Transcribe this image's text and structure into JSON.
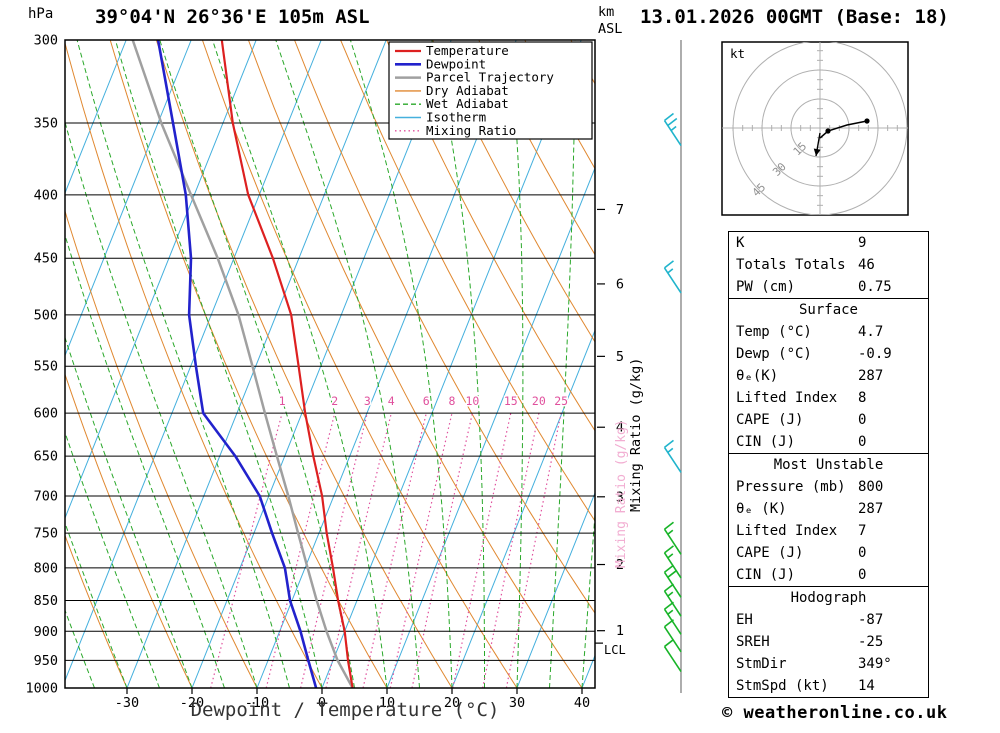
{
  "header": {
    "left_unit": "hPa",
    "title": "39°04'N 26°36'E 105m ASL",
    "right_unit_line1": "km",
    "right_unit_line2": "ASL",
    "datetime": "13.01.2026 00GMT (Base: 18)"
  },
  "legend": {
    "items": [
      {
        "label": "Temperature",
        "color": "#dd2020",
        "style": "solid",
        "width": 2.2
      },
      {
        "label": "Dewpoint",
        "color": "#2222cc",
        "style": "solid",
        "width": 2.6
      },
      {
        "label": "Parcel Trajectory",
        "color": "#a0a0a0",
        "style": "solid",
        "width": 2.5
      },
      {
        "label": "Dry Adiabat",
        "color": "#e08830",
        "style": "solid",
        "width": 1
      },
      {
        "label": "Wet Adiabat",
        "color": "#2aa82a",
        "style": "dashed",
        "width": 1
      },
      {
        "label": "Isotherm",
        "color": "#45b0dd",
        "style": "solid",
        "width": 1.2
      },
      {
        "label": "Mixing Ratio",
        "color": "#e0509d",
        "style": "dotted",
        "width": 1.2
      }
    ]
  },
  "axes": {
    "pressure_ticks": [
      300,
      350,
      400,
      450,
      500,
      550,
      600,
      650,
      700,
      750,
      800,
      850,
      900,
      950,
      1000
    ],
    "temp_ticks": [
      -30,
      -20,
      -10,
      0,
      10,
      20,
      30,
      40
    ],
    "xlabel": "Dewpoint / Temperature (°C)",
    "mixing_ratio_label": "Mixing Ratio (g/kg)",
    "mixing_ratio_values": [
      1,
      2,
      3,
      4,
      6,
      8,
      10,
      15,
      20,
      25
    ],
    "km_ticks": [
      {
        "km": 1,
        "p": 899
      },
      {
        "km": 2,
        "p": 795
      },
      {
        "km": 3,
        "p": 701
      },
      {
        "km": 4,
        "p": 616
      },
      {
        "km": 5,
        "p": 540
      },
      {
        "km": 6,
        "p": 472
      },
      {
        "km": 7,
        "p": 411
      }
    ],
    "lcl": {
      "label": "LCL",
      "pressure": 920
    }
  },
  "chart_data": {
    "type": "skewt_sounding",
    "pressure_hpa": [
      1000,
      950,
      900,
      850,
      800,
      750,
      700,
      650,
      600,
      550,
      500,
      450,
      400,
      350,
      300
    ],
    "temperature_c": [
      4.7,
      2.3,
      0.0,
      -2.9,
      -5.7,
      -8.8,
      -11.8,
      -15.6,
      -19.5,
      -23.4,
      -27.7,
      -34.0,
      -41.7,
      -48.5,
      -55.3
    ],
    "dewpoint_c": [
      -0.9,
      -3.8,
      -6.8,
      -10.3,
      -13.1,
      -17.2,
      -21.4,
      -27.6,
      -35.2,
      -39.2,
      -43.4,
      -46.6,
      -51.3,
      -57.7,
      -65.1
    ],
    "parcel_c": [
      4.7,
      0.7,
      -2.8,
      -6.2,
      -9.6,
      -13.2,
      -17.0,
      -21.2,
      -25.7,
      -30.5,
      -35.8,
      -42.5,
      -50.5,
      -59.5,
      -69.0
    ],
    "wind_barbs": [
      {
        "pressure": 365,
        "speed": 25,
        "color": "#20b4cc"
      },
      {
        "pressure": 480,
        "speed": 15,
        "color": "#20b4cc"
      },
      {
        "pressure": 670,
        "speed": 15,
        "color": "#20b4cc"
      },
      {
        "pressure": 780,
        "speed": 15,
        "color": "#18b428"
      },
      {
        "pressure": 815,
        "speed": 15,
        "color": "#18b428"
      },
      {
        "pressure": 845,
        "speed": 20,
        "color": "#18b428"
      },
      {
        "pressure": 875,
        "speed": 15,
        "color": "#18b428"
      },
      {
        "pressure": 905,
        "speed": 15,
        "color": "#18b428"
      },
      {
        "pressure": 935,
        "speed": 10,
        "color": "#18b428"
      },
      {
        "pressure": 970,
        "speed": 10,
        "color": "#18b428"
      }
    ]
  },
  "hodograph": {
    "unit_label": "kt",
    "ring_labels": [
      "15",
      "30",
      "45"
    ],
    "trace": [
      [
        47,
        -7
      ],
      [
        27,
        -3
      ],
      [
        8,
        3
      ],
      [
        0,
        10
      ]
    ],
    "arrow": [
      [
        0,
        5
      ],
      [
        -4,
        28
      ]
    ]
  },
  "table": {
    "sections": [
      {
        "header": null,
        "rows": [
          [
            "K",
            "9"
          ],
          [
            "Totals Totals",
            "46"
          ],
          [
            "PW (cm)",
            "0.75"
          ]
        ]
      },
      {
        "header": "Surface",
        "rows": [
          [
            "Temp (°C)",
            "4.7"
          ],
          [
            "Dewp (°C)",
            "-0.9"
          ],
          [
            "θₑ(K)",
            "287"
          ],
          [
            "Lifted Index",
            "8"
          ],
          [
            "CAPE (J)",
            "0"
          ],
          [
            "CIN (J)",
            "0"
          ]
        ]
      },
      {
        "header": "Most Unstable",
        "rows": [
          [
            "Pressure (mb)",
            "800"
          ],
          [
            "θₑ (K)",
            "287"
          ],
          [
            "Lifted Index",
            "7"
          ],
          [
            "CAPE (J)",
            "0"
          ],
          [
            "CIN (J)",
            "0"
          ]
        ]
      },
      {
        "header": "Hodograph",
        "rows": [
          [
            "EH",
            "-87"
          ],
          [
            "SREH",
            "-25"
          ],
          [
            "StmDir",
            "349°"
          ],
          [
            "StmSpd (kt)",
            "14"
          ]
        ]
      }
    ]
  },
  "footer": {
    "copyright": "© weatheronline.co.uk"
  }
}
